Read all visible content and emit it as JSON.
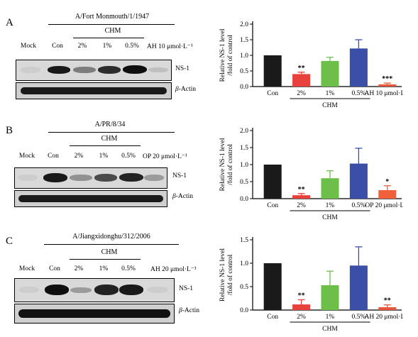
{
  "panels": [
    {
      "id": "A",
      "letter": "A",
      "strain": "A/Fort Monmouth/1/1947",
      "chm_label": "CHM",
      "lanes": [
        "Mock",
        "Con",
        "2%",
        "1%",
        "0.5%",
        "AH 10 μmol·L⁻¹"
      ],
      "band_labels": {
        "target": "NS-1",
        "control_prefix": "β",
        "control_suffix": "-Actin"
      },
      "ns1_band_intensity": [
        0.05,
        0.95,
        0.45,
        0.85,
        1.0,
        0.12
      ]
    },
    {
      "id": "B",
      "letter": "B",
      "strain": "A/PR/8/34",
      "chm_label": "CHM",
      "lanes": [
        "Mock",
        "Con",
        "2%",
        "1%",
        "0.5%",
        "OP 20 μmol·L⁻¹"
      ],
      "band_labels": {
        "target": "NS-1",
        "control_prefix": "β",
        "control_suffix": "-Actin"
      },
      "ns1_band_intensity": [
        0.05,
        0.95,
        0.35,
        0.7,
        0.9,
        0.3
      ]
    },
    {
      "id": "C",
      "letter": "C",
      "strain": "A/Jiangxidonghu/312/2006",
      "chm_label": "CHM",
      "lanes": [
        "Mock",
        "Con",
        "2%",
        "1%",
        "0.5%",
        "AH 20 μmol·L⁻¹"
      ],
      "band_labels": {
        "target": "NS-1",
        "control_prefix": "β",
        "control_suffix": "-Actin"
      },
      "ns1_band_intensity": [
        0.05,
        1.0,
        0.3,
        0.9,
        0.95,
        0.05
      ]
    }
  ],
  "chart_data": [
    {
      "type": "bar",
      "categories": [
        "Con",
        "2%",
        "1%",
        "0.5%",
        "AH 10 μmol·L⁻¹"
      ],
      "values": [
        1.0,
        0.4,
        0.82,
        1.22,
        0.07
      ],
      "errors": [
        0,
        0.06,
        0.12,
        0.28,
        0.04
      ],
      "significance": [
        "",
        "**",
        "",
        "",
        "***"
      ],
      "colors": [
        "#1a1a1a",
        "#e8403a",
        "#6cc04a",
        "#3a4fa8",
        "#e8563a"
      ],
      "ylabel_line1": "Relative NS-1 level",
      "ylabel_line2": "/fold of control",
      "group_label": "CHM",
      "yticks": [
        "0.0",
        "0.5",
        "1.0",
        "1.5",
        "2.0"
      ],
      "ylim": [
        0,
        2.0
      ]
    },
    {
      "type": "bar",
      "categories": [
        "Con",
        "2%",
        "1%",
        "0.5%",
        "OP 20 μmol·L⁻¹"
      ],
      "values": [
        1.0,
        0.1,
        0.6,
        1.03,
        0.25
      ],
      "errors": [
        0,
        0.05,
        0.22,
        0.45,
        0.13
      ],
      "significance": [
        "",
        "**",
        "",
        "",
        "*"
      ],
      "colors": [
        "#1a1a1a",
        "#e8403a",
        "#6cc04a",
        "#3a4fa8",
        "#f0603a"
      ],
      "ylabel_line1": "Relative NS-1 level",
      "ylabel_line2": "/fold of control",
      "group_label": "CHM",
      "yticks": [
        "0.0",
        "0.5",
        "1.0",
        "1.5",
        "2.0"
      ],
      "ylim": [
        0,
        2.0
      ]
    },
    {
      "type": "bar",
      "categories": [
        "Con",
        "2%",
        "1%",
        "0.5%",
        "AH 20 μmol·L⁻¹"
      ],
      "values": [
        1.0,
        0.12,
        0.53,
        0.95,
        0.06
      ],
      "errors": [
        0,
        0.1,
        0.3,
        0.4,
        0.05
      ],
      "significance": [
        "",
        "**",
        "",
        "",
        "**"
      ],
      "colors": [
        "#1a1a1a",
        "#e8403a",
        "#6cc04a",
        "#3a4fa8",
        "#e8563a"
      ],
      "ylabel_line1": "Relative NS-1 level",
      "ylabel_line2": "/fold of control",
      "group_label": "CHM",
      "yticks": [
        "0.0",
        "0.5",
        "1.0",
        "1.5"
      ],
      "ylim": [
        0,
        1.5
      ]
    }
  ]
}
